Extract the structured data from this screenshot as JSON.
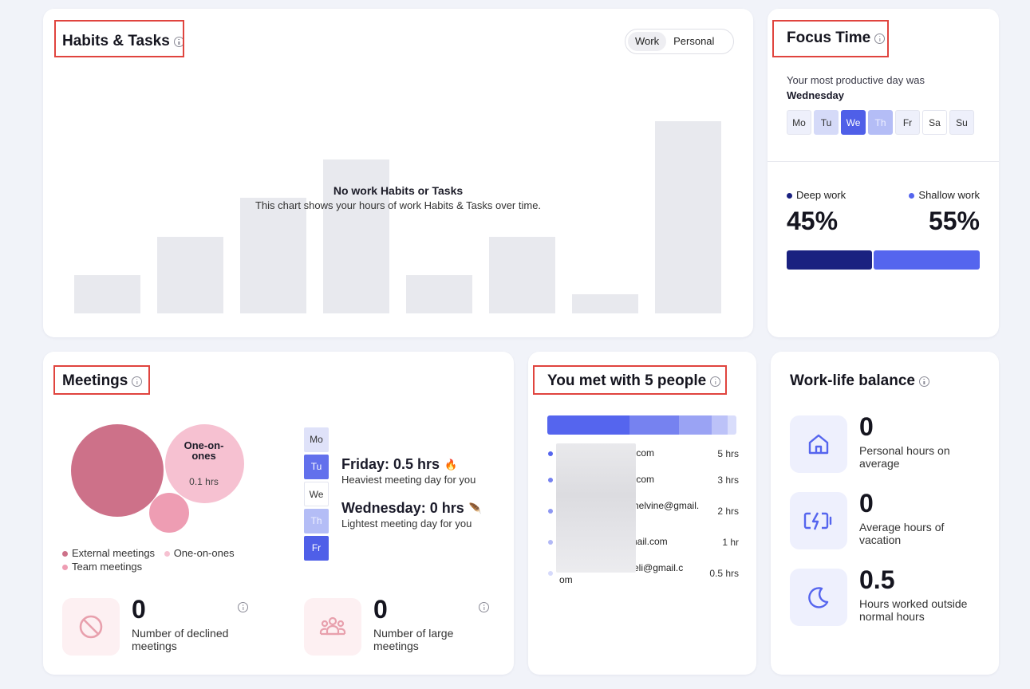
{
  "habits": {
    "title": "Habits & Tasks",
    "toggle": [
      "Work",
      "Personal"
    ],
    "toggle_active": "Work",
    "empty_title": "No work Habits or Tasks",
    "empty_subtitle": "This chart shows your hours of work Habits & Tasks over time."
  },
  "focus": {
    "title": "Focus Time",
    "productive_prefix": "Your most productive day was",
    "productive_day": "Wednesday",
    "days": [
      "Mo",
      "Tu",
      "We",
      "Th",
      "Fr",
      "Sa",
      "Su"
    ],
    "deep_label": "Deep work",
    "deep_pct": "45%",
    "shallow_label": "Shallow work",
    "shallow_pct": "55%",
    "colors": {
      "deep": "#1a2180",
      "shallow": "#5565ee"
    }
  },
  "meetings": {
    "title": "Meetings",
    "bubble_one_on_ones_label": "One-on-ones",
    "bubble_one_on_ones_hrs": "0.1 hrs",
    "legend": [
      "External meetings",
      "One-on-ones",
      "Team meetings"
    ],
    "days": [
      "Mo",
      "Tu",
      "We",
      "Th",
      "Fr"
    ],
    "heaviest_title": "Friday: 0.5 hrs",
    "heaviest_sub": "Heaviest meeting day for you",
    "lightest_title": "Wednesday: 0 hrs",
    "lightest_sub": "Lightest meeting day for you",
    "declined_num": "0",
    "declined_label": "Number of declined meetings",
    "large_num": "0",
    "large_label": "Number of large meetings"
  },
  "people": {
    "title": "You met with 5 people",
    "rows": [
      {
        "email": ".com",
        "hrs": "5 hrs"
      },
      {
        "email": ".com",
        "hrs": "3 hrs"
      },
      {
        "email": "nelvine@gmail.",
        "hrs": "2 hrs"
      },
      {
        "email": "gmail.com",
        "hrs": "1 hr"
      },
      {
        "email": "eli@gmail.c",
        "email_cont": "om",
        "hrs": "0.5 hrs"
      }
    ]
  },
  "wlb": {
    "title": "Work-life balance",
    "personal_num": "0",
    "personal_label": "Personal hours on average",
    "vacation_num": "0",
    "vacation_label": "Average hours of vacation",
    "outside_num": "0.5",
    "outside_label": "Hours worked outside normal hours"
  }
}
